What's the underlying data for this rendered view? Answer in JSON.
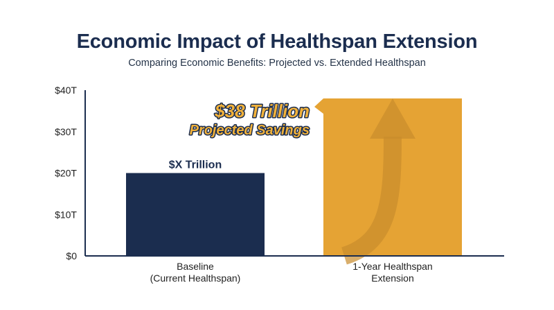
{
  "chart_data": {
    "type": "bar",
    "title": "Economic Impact of Healthspan Extension",
    "subtitle": "Comparing Economic Benefits: Projected vs. Extended Healthspan",
    "categories": [
      [
        "Baseline",
        "(Current Healthspan)"
      ],
      [
        "1-Year Healthspan",
        "Extension"
      ]
    ],
    "values": [
      20,
      38
    ],
    "data_labels": [
      "$X Trillion",
      ""
    ],
    "ylim": [
      0,
      40
    ],
    "yticks": [
      0,
      10,
      20,
      30,
      40
    ],
    "ytick_labels": [
      "$0",
      "$10T",
      "$20T",
      "$30T",
      "$40T"
    ],
    "colors": [
      "#1b2d4f",
      "#e5a334"
    ],
    "annotation": {
      "line1": "$38 Trillion",
      "line2": "Projected Savings"
    },
    "grid": false,
    "legend": "none"
  }
}
